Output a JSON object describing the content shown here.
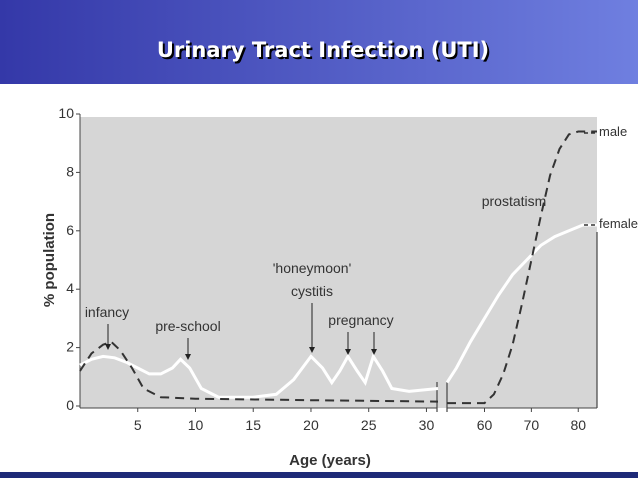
{
  "title": "Urinary Tract Infection (UTI)",
  "chart_data": [
    {
      "type": "line",
      "ylabel": "% population",
      "xlabel": "Age (years)",
      "ylim": [
        0,
        10
      ],
      "yticks": [
        0,
        2,
        4,
        6,
        8,
        10
      ],
      "xlim": [
        0,
        31
      ],
      "xticks": [
        5,
        10,
        15,
        20,
        25,
        30
      ],
      "annotations": [
        "infancy",
        "pre-school",
        "'honeymoon'",
        "cystitis",
        "pregnancy"
      ],
      "series": [
        {
          "color": "#ffffff",
          "linestyle": "solid",
          "x": [
            0,
            1,
            2,
            3,
            4,
            5,
            6,
            7,
            8,
            8.7,
            9.5,
            10.5,
            12,
            15,
            17,
            18.5,
            20,
            21,
            21.8,
            22.5,
            23.2,
            24,
            24.7,
            25.4,
            26.2,
            27,
            28.5,
            31
          ],
          "values": [
            1.4,
            1.6,
            1.7,
            1.65,
            1.5,
            1.3,
            1.1,
            1.1,
            1.3,
            1.6,
            1.3,
            0.6,
            0.3,
            0.3,
            0.4,
            0.9,
            1.7,
            1.3,
            0.8,
            1.2,
            1.7,
            1.2,
            0.8,
            1.7,
            1.2,
            0.6,
            0.5,
            0.6
          ]
        },
        {
          "color": "#333333",
          "linestyle": "dashed",
          "x": [
            0,
            1,
            2,
            2.7,
            3.5,
            4.5,
            5.5,
            7,
            10,
            20,
            31
          ],
          "values": [
            1.2,
            1.8,
            2.1,
            2.2,
            1.9,
            1.3,
            0.6,
            0.3,
            0.25,
            0.2,
            0.15
          ]
        }
      ]
    },
    {
      "type": "line",
      "xlim": [
        52,
        84
      ],
      "xticks": [
        60,
        70,
        80
      ],
      "annotations": [
        "prostatism"
      ],
      "series": [
        {
          "name": "female",
          "color": "#ffffff",
          "linestyle": "solid",
          "x": [
            52,
            54,
            57,
            60,
            63,
            66,
            69,
            72,
            75,
            78,
            81,
            84
          ],
          "values": [
            0.8,
            1.3,
            2.2,
            3.0,
            3.8,
            4.5,
            5.0,
            5.5,
            5.8,
            6.0,
            6.2,
            6.2
          ]
        },
        {
          "name": "male",
          "color": "#333333",
          "linestyle": "dashed",
          "x": [
            52,
            56,
            60,
            62,
            64,
            66,
            68,
            70,
            72,
            74,
            76,
            78,
            80,
            84
          ],
          "values": [
            0.1,
            0.1,
            0.1,
            0.4,
            1.1,
            2.1,
            3.5,
            5.0,
            6.5,
            7.9,
            8.8,
            9.3,
            9.4,
            9.4
          ]
        }
      ]
    }
  ]
}
